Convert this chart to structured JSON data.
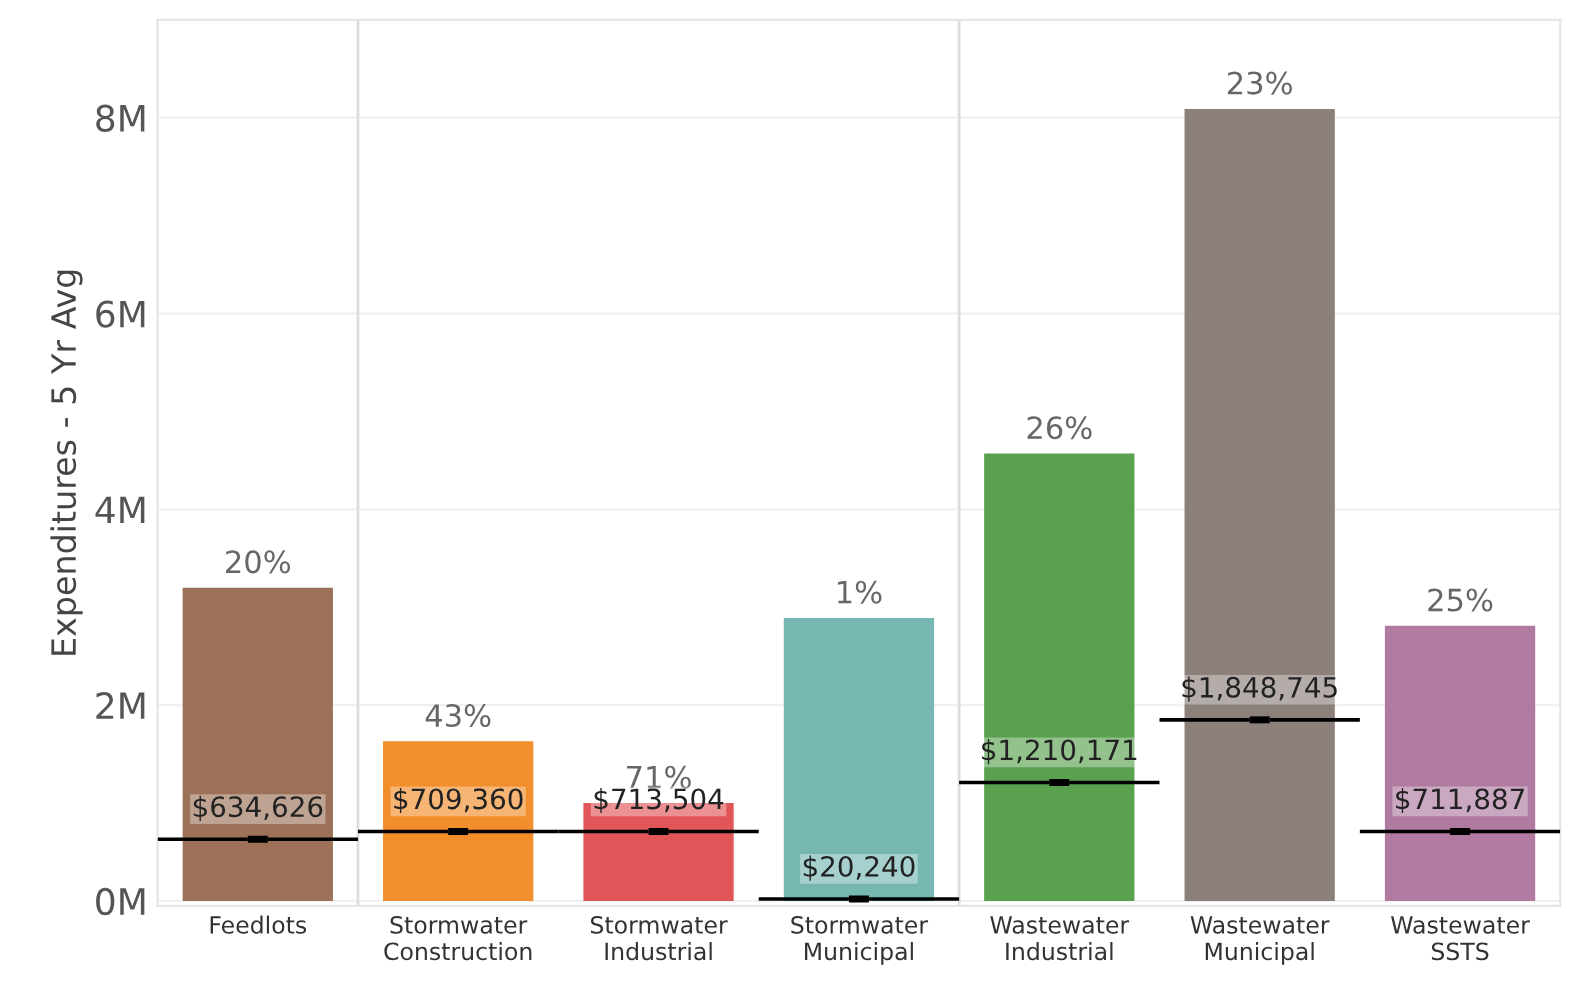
{
  "chart_data": {
    "type": "bar",
    "ylabel": "Expenditures - 5 Yr Avg",
    "categories": [
      "Feedlots",
      "Stormwater\nConstruction",
      "Stormwater\nIndustrial",
      "Stormwater\nMunicipal",
      "Wastewater\nIndustrial",
      "Wastewater\nMunicipal",
      "Wastewater\nSSTS"
    ],
    "series": [
      {
        "colors": [
          "#9c7158",
          "#f28e2b",
          "#e15759",
          "#76b7b2",
          "#59a14f",
          "#8c807b",
          "#b07aa1"
        ],
        "values": [
          3.2,
          1.63,
          1.0,
          2.89,
          4.57,
          8.09,
          2.81
        ]
      },
      {
        "type": "scatter",
        "color": "#000000",
        "values": [
          0.63,
          0.71,
          0.71,
          0.02,
          1.21,
          1.85,
          0.71
        ]
      }
    ],
    "annotations": [
      {
        "text": "20%",
        "x": "Feedlots",
        "y": 3.2
      },
      {
        "text": "43%",
        "x": "Stormwater\nConstruction",
        "y": 1.63
      },
      {
        "text": "71%",
        "x": "Stormwater\nIndustrial",
        "y": 1.0
      },
      {
        "text": "1%",
        "x": "Stormwater\nMunicipal",
        "y": 2.89
      },
      {
        "text": "26%",
        "x": "Wastewater\nIndustrial",
        "y": 4.57
      },
      {
        "text": "23%",
        "x": "Wastewater\nMunicipal",
        "y": 8.09
      },
      {
        "text": "25%",
        "x": "Wastewater\nSSTS",
        "y": 2.81
      },
      {
        "text": "$634,626",
        "x": "Feedlots",
        "y": 0.63
      },
      {
        "text": "$709,360",
        "x": "Stormwater\nConstruction",
        "y": 0.71
      },
      {
        "text": "$713,504",
        "x": "Stormwater\nIndustrial",
        "y": 0.71
      },
      {
        "text": "$20,240",
        "x": "Stormwater\nMunicipal",
        "y": 0.02
      },
      {
        "text": "$1,210,171",
        "x": "Wastewater\nIndustrial",
        "y": 1.21
      },
      {
        "text": "$1,848,745",
        "x": "Wastewater\nMunicipal",
        "y": 1.85
      },
      {
        "text": "$711,887",
        "x": "Wastewater\nSSTS",
        "y": 0.71
      }
    ],
    "ylim": [
      -0.05,
      9.0
    ],
    "yticks": [
      {
        "value": 0,
        "label": "0M"
      },
      {
        "value": 2,
        "label": "2M"
      },
      {
        "value": 4,
        "label": "4M"
      },
      {
        "value": 6,
        "label": "6M"
      },
      {
        "value": 8,
        "label": "8M"
      }
    ],
    "grid": "y"
  }
}
